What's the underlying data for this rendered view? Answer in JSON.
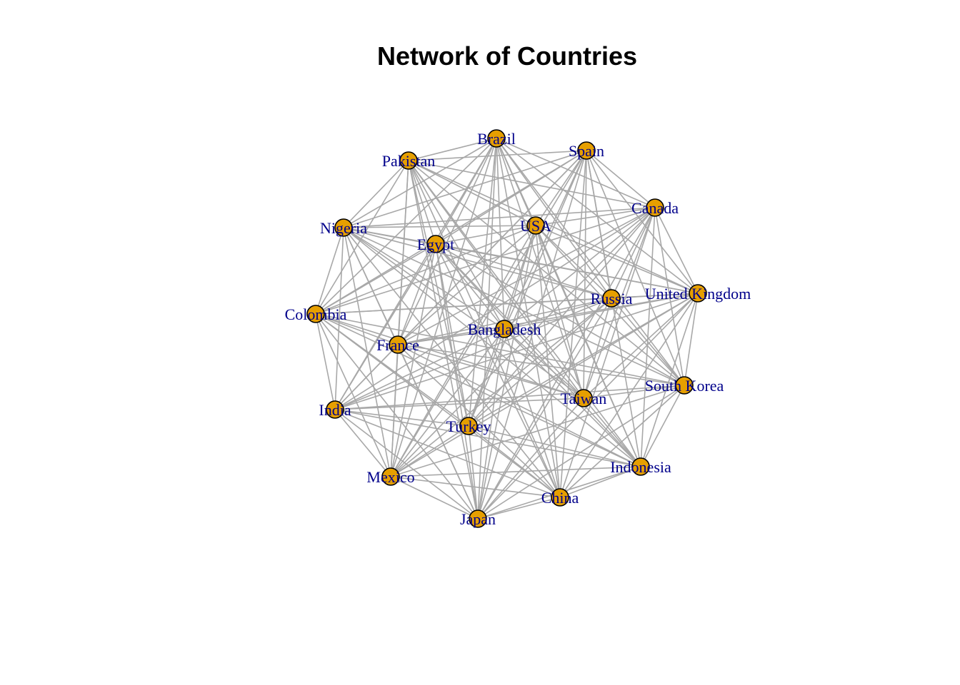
{
  "title": "Network of Countries",
  "colors": {
    "edge": "#a8a8a8",
    "node_fill": "#e69f00",
    "node_stroke": "#000000",
    "label": "#00008b",
    "background": "#ffffff"
  },
  "nodes": [
    "Brazil",
    "Spain",
    "Pakistan",
    "Canada",
    "USA",
    "Nigeria",
    "Egypt",
    "Russia",
    "United Kingdom",
    "Colombia",
    "Bangladesh",
    "France",
    "South Korea",
    "Taiwan",
    "India",
    "Turkey",
    "Indonesia",
    "Mexico",
    "China",
    "Japan"
  ]
}
